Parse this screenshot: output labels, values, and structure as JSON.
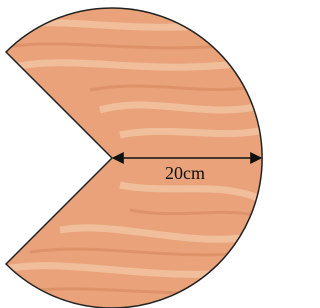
{
  "label": "20cm"
}
